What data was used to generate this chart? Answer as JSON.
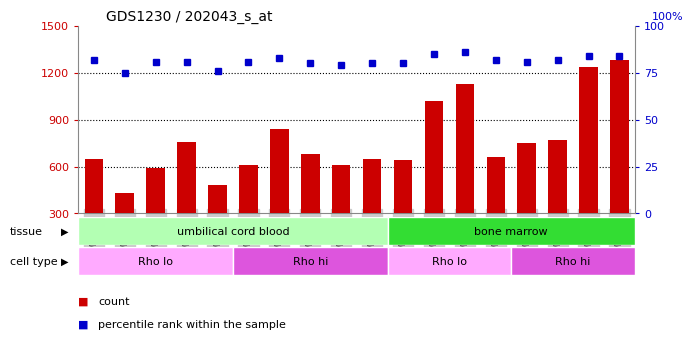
{
  "title": "GDS1230 / 202043_s_at",
  "samples": [
    "GSM51392",
    "GSM51394",
    "GSM51396",
    "GSM51398",
    "GSM51400",
    "GSM51391",
    "GSM51393",
    "GSM51395",
    "GSM51397",
    "GSM51399",
    "GSM51402",
    "GSM51404",
    "GSM51406",
    "GSM51408",
    "GSM51401",
    "GSM51403",
    "GSM51405",
    "GSM51407"
  ],
  "counts": [
    650,
    430,
    590,
    760,
    480,
    610,
    840,
    680,
    610,
    650,
    640,
    1020,
    1130,
    660,
    750,
    770,
    1240,
    1280
  ],
  "percentile_ranks": [
    82,
    75,
    81,
    81,
    76,
    81,
    83,
    80,
    79,
    80,
    80,
    85,
    86,
    82,
    81,
    82,
    84,
    84
  ],
  "ylim_left": [
    300,
    1500
  ],
  "ylim_right": [
    0,
    100
  ],
  "yticks_left": [
    300,
    600,
    900,
    1200,
    1500
  ],
  "yticks_right": [
    0,
    25,
    50,
    75,
    100
  ],
  "grid_yticks": [
    600,
    900,
    1200
  ],
  "bar_color": "#cc0000",
  "dot_color": "#0000cc",
  "grid_color": "#000000",
  "tissue_groups": [
    {
      "label": "umbilical cord blood",
      "start": 0,
      "end": 10,
      "color": "#b3ffb3"
    },
    {
      "label": "bone marrow",
      "start": 10,
      "end": 18,
      "color": "#33dd33"
    }
  ],
  "cell_type_groups": [
    {
      "label": "Rho lo",
      "start": 0,
      "end": 5,
      "color": "#ffaaff"
    },
    {
      "label": "Rho hi",
      "start": 5,
      "end": 10,
      "color": "#dd55dd"
    },
    {
      "label": "Rho lo",
      "start": 10,
      "end": 14,
      "color": "#ffaaff"
    },
    {
      "label": "Rho hi",
      "start": 14,
      "end": 18,
      "color": "#dd55dd"
    }
  ],
  "legend_count_label": "count",
  "legend_pct_label": "percentile rank within the sample",
  "tissue_label": "tissue",
  "cell_type_label": "cell type",
  "bg_color": "#ffffff",
  "plot_bg_color": "#ffffff",
  "right_axis_label": "100%",
  "right_axis_color": "#0000cc",
  "left_axis_color": "#cc0000",
  "tick_label_color": "#666666",
  "xtick_bg_color": "#cccccc"
}
